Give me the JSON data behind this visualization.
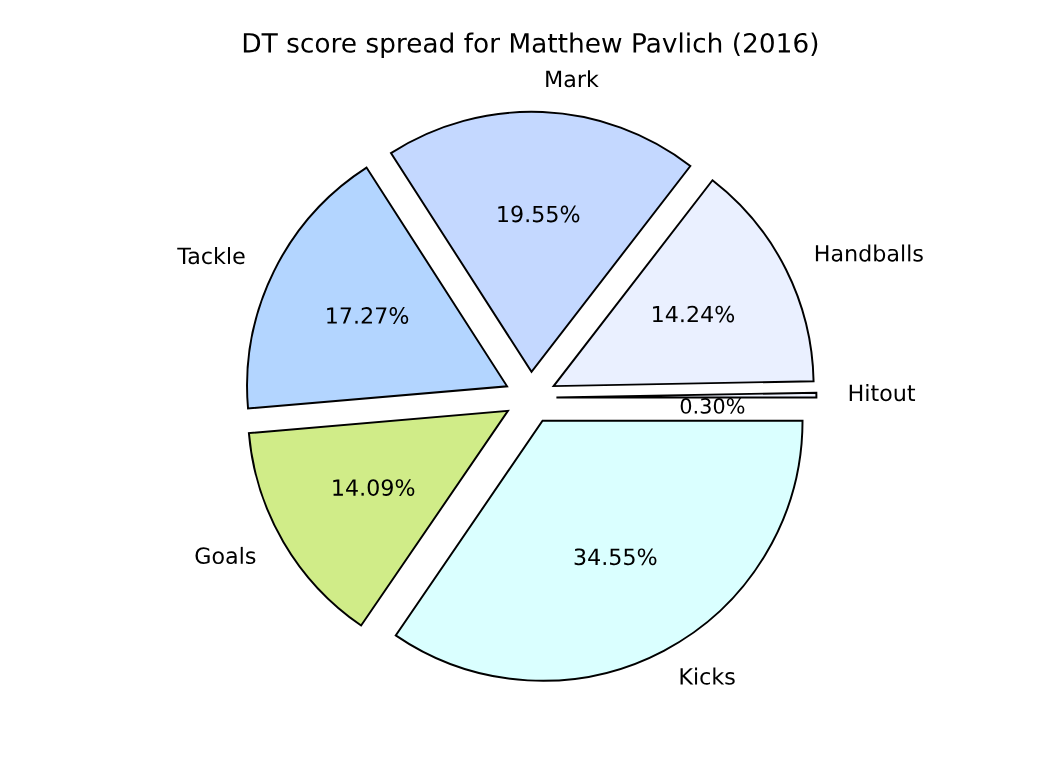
{
  "chart_data": {
    "type": "pie",
    "title": "DT score spread for Matthew Pavlich (2016)",
    "categories": [
      "Hitout",
      "Handballs",
      "Mark",
      "Tackle",
      "Goals",
      "Kicks"
    ],
    "values": [
      0.3,
      14.24,
      19.55,
      17.27,
      14.09,
      34.55
    ],
    "value_labels": [
      "0.30%",
      "14.24%",
      "19.55%",
      "17.27%",
      "14.09%",
      "34.55%"
    ],
    "colors": [
      "#eef2ff",
      "#eaf0ff",
      "#c4d8ff",
      "#b3d5ff",
      "#d0ec88",
      "#daffff"
    ]
  }
}
